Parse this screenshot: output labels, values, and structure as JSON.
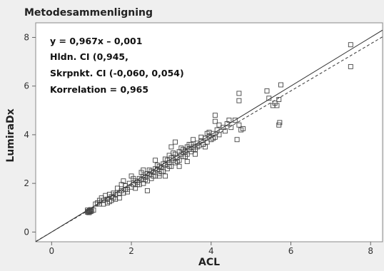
{
  "chart_data": {
    "type": "scatter",
    "title": "Metodesammenligning",
    "xlabel": "ACL",
    "ylabel": "LumiraDx",
    "xlim": [
      -0.4,
      8.3
    ],
    "ylim": [
      -0.4,
      8.6
    ],
    "xticks": [
      0,
      2,
      4,
      6,
      8
    ],
    "yticks": [
      0,
      2,
      4,
      6,
      8
    ],
    "grid": false,
    "annotations": [
      "y = 0,967x – 0,001",
      "Hldn. CI (0,945,",
      "Skrpnkt. CI (-0,060, 0,054)",
      "Korrelation = 0,965"
    ],
    "lines": [
      {
        "name": "",
        "style": "solid",
        "slope": 1.0,
        "intercept": 0.0
      },
      {
        "name": "",
        "style": "dashed",
        "slope": 0.967,
        "intercept": -0.001
      }
    ],
    "series": [
      {
        "name": "",
        "points": [
          [
            0.9,
            0.82
          ],
          [
            0.92,
            0.85
          ],
          [
            0.94,
            0.8
          ],
          [
            0.95,
            0.88
          ],
          [
            0.9,
            0.9
          ],
          [
            0.97,
            0.84
          ],
          [
            0.93,
            0.8
          ],
          [
            1.0,
            0.86
          ],
          [
            0.98,
            0.92
          ],
          [
            1.05,
            0.9
          ],
          [
            1.2,
            1.15
          ],
          [
            1.3,
            1.3
          ],
          [
            1.4,
            1.35
          ],
          [
            1.35,
            1.5
          ],
          [
            1.45,
            1.25
          ],
          [
            1.5,
            1.45
          ],
          [
            1.55,
            1.6
          ],
          [
            1.5,
            1.3
          ],
          [
            1.6,
            1.55
          ],
          [
            1.7,
            1.4
          ],
          [
            1.65,
            1.8
          ],
          [
            1.75,
            1.7
          ],
          [
            1.8,
            1.6
          ],
          [
            1.85,
            1.9
          ],
          [
            1.9,
            1.75
          ],
          [
            1.95,
            2.0
          ],
          [
            2.0,
            1.85
          ],
          [
            2.05,
            1.95
          ],
          [
            2.1,
            2.1
          ],
          [
            2.1,
            1.8
          ],
          [
            2.15,
            2.05
          ],
          [
            2.2,
            2.2
          ],
          [
            2.2,
            1.95
          ],
          [
            2.25,
            2.15
          ],
          [
            2.3,
            2.3
          ],
          [
            2.3,
            2.0
          ],
          [
            2.35,
            2.25
          ],
          [
            2.4,
            2.1
          ],
          [
            2.4,
            2.4
          ],
          [
            2.45,
            2.35
          ],
          [
            2.5,
            2.2
          ],
          [
            2.5,
            2.5
          ],
          [
            2.55,
            2.45
          ],
          [
            2.6,
            2.3
          ],
          [
            2.6,
            2.6
          ],
          [
            2.65,
            2.55
          ],
          [
            2.7,
            2.4
          ],
          [
            2.7,
            2.7
          ],
          [
            2.75,
            2.65
          ],
          [
            2.8,
            2.5
          ],
          [
            2.8,
            2.8
          ],
          [
            2.85,
            2.75
          ],
          [
            2.9,
            2.6
          ],
          [
            2.9,
            2.95
          ],
          [
            2.95,
            2.85
          ],
          [
            3.0,
            2.7
          ],
          [
            3.0,
            3.05
          ],
          [
            3.05,
            2.95
          ],
          [
            3.1,
            2.85
          ],
          [
            3.1,
            3.2
          ],
          [
            3.15,
            3.05
          ],
          [
            3.2,
            2.95
          ],
          [
            3.2,
            3.3
          ],
          [
            3.25,
            3.2
          ],
          [
            3.3,
            3.1
          ],
          [
            3.3,
            3.4
          ],
          [
            3.35,
            3.3
          ],
          [
            3.4,
            3.2
          ],
          [
            3.4,
            3.5
          ],
          [
            3.45,
            3.4
          ],
          [
            3.5,
            3.3
          ],
          [
            3.5,
            3.6
          ],
          [
            3.55,
            3.5
          ],
          [
            3.6,
            3.4
          ],
          [
            3.65,
            3.65
          ],
          [
            3.7,
            3.55
          ],
          [
            3.75,
            3.75
          ],
          [
            3.8,
            3.6
          ],
          [
            3.85,
            3.85
          ],
          [
            3.9,
            3.7
          ],
          [
            3.95,
            3.95
          ],
          [
            4.0,
            3.8
          ],
          [
            4.05,
            4.05
          ],
          [
            4.1,
            3.9
          ],
          [
            4.15,
            4.2
          ],
          [
            4.2,
            4.0
          ],
          [
            4.3,
            4.3
          ],
          [
            4.35,
            4.15
          ],
          [
            4.4,
            4.45
          ],
          [
            4.5,
            4.3
          ],
          [
            4.6,
            4.6
          ],
          [
            4.7,
            4.4
          ],
          [
            4.75,
            4.2
          ],
          [
            4.8,
            4.25
          ],
          [
            4.65,
            3.8
          ],
          [
            4.1,
            4.55
          ],
          [
            4.1,
            4.8
          ],
          [
            4.7,
            5.4
          ],
          [
            4.7,
            5.7
          ],
          [
            5.4,
            5.8
          ],
          [
            5.45,
            5.5
          ],
          [
            5.6,
            5.3
          ],
          [
            5.65,
            5.2
          ],
          [
            5.7,
            5.45
          ],
          [
            5.7,
            4.4
          ],
          [
            5.72,
            4.5
          ],
          [
            5.75,
            6.05
          ],
          [
            5.55,
            5.2
          ],
          [
            3.1,
            3.7
          ],
          [
            3.0,
            3.5
          ],
          [
            2.6,
            2.95
          ],
          [
            2.3,
            2.55
          ],
          [
            2.0,
            2.3
          ],
          [
            1.8,
            2.1
          ],
          [
            2.7,
            2.3
          ],
          [
            3.4,
            2.9
          ],
          [
            3.6,
            3.2
          ],
          [
            3.2,
            2.7
          ],
          [
            2.85,
            2.3
          ],
          [
            2.15,
            1.95
          ],
          [
            1.6,
            1.35
          ],
          [
            1.4,
            1.2
          ],
          [
            2.4,
            1.7
          ],
          [
            3.35,
            3.35
          ],
          [
            3.55,
            3.8
          ],
          [
            3.9,
            4.05
          ],
          [
            4.2,
            4.4
          ],
          [
            4.45,
            4.6
          ],
          [
            1.25,
            1.4
          ],
          [
            1.15,
            1.2
          ],
          [
            1.1,
            1.15
          ],
          [
            1.3,
            1.15
          ],
          [
            1.2,
            1.3
          ],
          [
            1.45,
            1.55
          ],
          [
            1.55,
            1.4
          ],
          [
            1.7,
            1.6
          ],
          [
            1.75,
            1.95
          ],
          [
            1.9,
            1.65
          ],
          [
            2.05,
            2.2
          ],
          [
            2.25,
            2.45
          ],
          [
            2.35,
            2.15
          ],
          [
            2.45,
            2.55
          ],
          [
            2.55,
            2.3
          ],
          [
            2.65,
            2.75
          ],
          [
            2.75,
            2.5
          ],
          [
            2.85,
            3.0
          ],
          [
            2.95,
            2.7
          ],
          [
            3.05,
            3.25
          ],
          [
            3.15,
            2.9
          ],
          [
            3.25,
            3.45
          ],
          [
            3.35,
            3.1
          ],
          [
            3.45,
            3.6
          ],
          [
            3.55,
            3.4
          ],
          [
            3.65,
            3.5
          ],
          [
            3.75,
            3.9
          ],
          [
            3.85,
            3.5
          ],
          [
            3.95,
            4.1
          ],
          [
            4.05,
            3.85
          ],
          [
            1.85,
            1.75
          ],
          [
            2.95,
            3.15
          ],
          [
            7.5,
            7.7
          ],
          [
            7.5,
            6.8
          ]
        ]
      }
    ]
  }
}
